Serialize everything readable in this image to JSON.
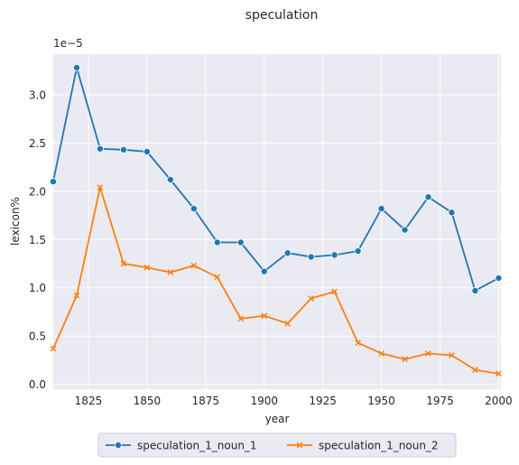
{
  "chart_data": {
    "type": "line",
    "title": "speculation",
    "xlabel": "year",
    "ylabel": "lexicon%",
    "y_scale_note": "1e−5",
    "xlim": [
      1810,
      2001
    ],
    "ylim": [
      -0.05,
      3.42
    ],
    "x_ticks": [
      1825,
      1850,
      1875,
      1900,
      1925,
      1950,
      1975,
      2000
    ],
    "y_ticks": [
      0.0,
      0.5,
      1.0,
      1.5,
      2.0,
      2.5,
      3.0
    ],
    "y_tick_labels": [
      "0.0",
      "0.5",
      "1.0",
      "1.5",
      "2.0",
      "2.5",
      "3.0"
    ],
    "grid": true,
    "legend_position": "bottom-center",
    "x": [
      1810,
      1820,
      1830,
      1840,
      1850,
      1860,
      1870,
      1880,
      1890,
      1900,
      1910,
      1920,
      1930,
      1940,
      1950,
      1960,
      1970,
      1980,
      1990,
      2000
    ],
    "series": [
      {
        "name": "speculation_1_noun_1",
        "color": "#1f77b4",
        "marker": "circle",
        "values": [
          2.1,
          3.28,
          2.44,
          2.43,
          2.41,
          2.12,
          1.82,
          1.47,
          1.47,
          1.17,
          1.36,
          1.32,
          1.34,
          1.38,
          1.82,
          1.6,
          1.94,
          1.78,
          0.97,
          1.1
        ]
      },
      {
        "name": "speculation_1_noun_2",
        "color": "#ff7f0e",
        "marker": "x",
        "values": [
          0.37,
          0.92,
          2.04,
          1.25,
          1.21,
          1.16,
          1.23,
          1.11,
          0.68,
          0.71,
          0.63,
          0.89,
          0.96,
          0.43,
          0.32,
          0.26,
          0.32,
          0.3,
          0.15,
          0.11
        ]
      }
    ]
  }
}
